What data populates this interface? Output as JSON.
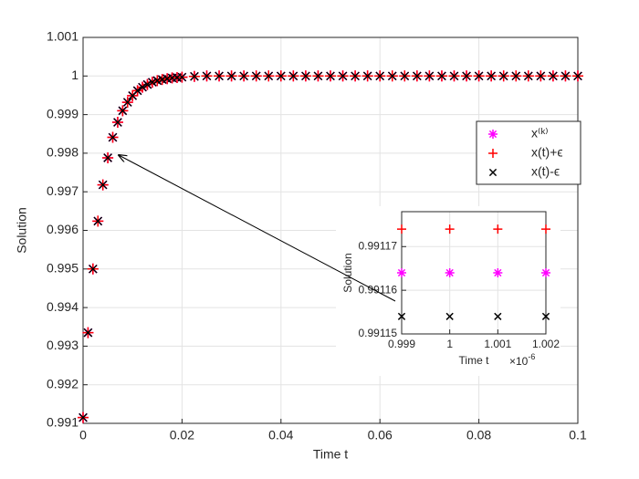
{
  "chart_data": [
    {
      "type": "scatter",
      "xlabel": "Time t",
      "ylabel": "Solution",
      "x": [
        0,
        0.001,
        0.002,
        0.003,
        0.004,
        0.005,
        0.006,
        0.007,
        0.008,
        0.009,
        0.01,
        0.011,
        0.012,
        0.013,
        0.014,
        0.015,
        0.016,
        0.017,
        0.018,
        0.019,
        0.02,
        0.0225,
        0.025,
        0.0275,
        0.03,
        0.0325,
        0.035,
        0.0375,
        0.04,
        0.0425,
        0.045,
        0.0475,
        0.05,
        0.0525,
        0.055,
        0.0575,
        0.06,
        0.0625,
        0.065,
        0.0675,
        0.07,
        0.0725,
        0.075,
        0.0775,
        0.08,
        0.0825,
        0.085,
        0.0875,
        0.09,
        0.0925,
        0.095,
        0.0975,
        0.1
      ],
      "series": [
        {
          "name": "x⁽ᵏ⁾",
          "color": "#ff00ff",
          "marker": "star",
          "values": [
            0.99115,
            0.99335,
            0.995,
            0.99624,
            0.99718,
            0.99788,
            0.99841,
            0.9988,
            0.9991,
            0.99932,
            0.99949,
            0.99962,
            0.99971,
            0.99978,
            0.99984,
            0.99988,
            0.99991,
            0.99993,
            0.99995,
            0.99996,
            0.99997,
            0.99999,
            1,
            1,
            1,
            1,
            1,
            1,
            1,
            1,
            1,
            1,
            1,
            1,
            1,
            1,
            1,
            1,
            1,
            1,
            1,
            1,
            1,
            1,
            1,
            1,
            1,
            1,
            1,
            1,
            1,
            1,
            1
          ]
        },
        {
          "name": "x(t)+ϵ",
          "color": "#ff0000",
          "marker": "plus",
          "values": [
            0.99115,
            0.99335,
            0.995,
            0.99624,
            0.99718,
            0.99788,
            0.99841,
            0.9988,
            0.9991,
            0.99932,
            0.99949,
            0.99962,
            0.99971,
            0.99978,
            0.99984,
            0.99988,
            0.99991,
            0.99993,
            0.99995,
            0.99996,
            0.99997,
            0.99999,
            1,
            1,
            1,
            1,
            1,
            1,
            1,
            1,
            1,
            1,
            1,
            1,
            1,
            1,
            1,
            1,
            1,
            1,
            1,
            1,
            1,
            1,
            1,
            1,
            1,
            1,
            1,
            1,
            1,
            1,
            1
          ]
        },
        {
          "name": "x(t)-ϵ",
          "color": "#000000",
          "marker": "x",
          "values": [
            0.99115,
            0.99335,
            0.995,
            0.99624,
            0.99718,
            0.99788,
            0.99841,
            0.9988,
            0.9991,
            0.99932,
            0.99949,
            0.99962,
            0.99971,
            0.99978,
            0.99984,
            0.99988,
            0.99991,
            0.99993,
            0.99995,
            0.99996,
            0.99997,
            0.99999,
            1,
            1,
            1,
            1,
            1,
            1,
            1,
            1,
            1,
            1,
            1,
            1,
            1,
            1,
            1,
            1,
            1,
            1,
            1,
            1,
            1,
            1,
            1,
            1,
            1,
            1,
            1,
            1,
            1,
            1,
            1
          ]
        }
      ],
      "xlim": [
        0,
        0.1
      ],
      "ylim": [
        0.991,
        1.001
      ],
      "xticks": [
        0,
        0.02,
        0.04,
        0.06,
        0.08,
        0.1
      ],
      "yticks": [
        0.991,
        0.992,
        0.993,
        0.994,
        0.995,
        0.996,
        0.997,
        0.998,
        0.999,
        1,
        1.001
      ],
      "grid": true,
      "legend": "right"
    },
    {
      "type": "scatter",
      "xlabel": "Time t",
      "ylabel": "Solution",
      "x_multiplier": "×10",
      "x_multiplier_exponent": "-6",
      "x": [
        0.999,
        1,
        1.001,
        1.002
      ],
      "series": [
        {
          "name": "x⁽ᵏ⁾",
          "color": "#ff00ff",
          "marker": "star",
          "values": [
            0.991164,
            0.991164,
            0.991164,
            0.991164
          ]
        },
        {
          "name": "x(t)+ϵ",
          "color": "#ff0000",
          "marker": "plus",
          "values": [
            0.991174,
            0.991174,
            0.991174,
            0.991174
          ]
        },
        {
          "name": "x(t)-ϵ",
          "color": "#000000",
          "marker": "x",
          "values": [
            0.991154,
            0.991154,
            0.991154,
            0.991154
          ]
        }
      ],
      "xlim": [
        0.999,
        1.002
      ],
      "ylim": [
        0.99115,
        0.991178
      ],
      "xticks": [
        0.999,
        1,
        1.001,
        1.002
      ],
      "yticks": [
        0.99115,
        0.99116,
        0.99117
      ],
      "grid": true
    }
  ]
}
